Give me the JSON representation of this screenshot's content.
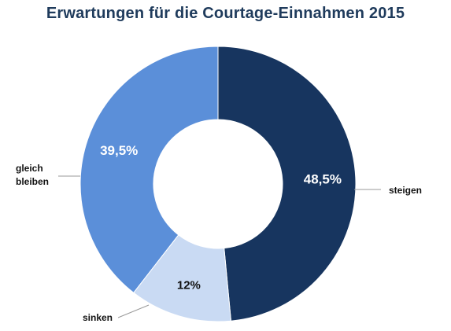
{
  "chart_data": {
    "type": "pie",
    "title": "Erwartungen für die Courtage-Einnahmen 2015",
    "categories": [
      "steigen",
      "sinken",
      "gleich bleiben"
    ],
    "values": [
      48.5,
      12,
      39.5
    ],
    "value_labels": [
      "48,5%",
      "12%",
      "39,5%"
    ],
    "category_label_lines": [
      [
        "steigen"
      ],
      [
        "sinken"
      ],
      [
        "gleich",
        "bleiben"
      ]
    ],
    "colors": [
      "#17355f",
      "#c9daf3",
      "#5b8fd9"
    ],
    "label_colors": [
      "#ffffff",
      "#111111",
      "#ffffff"
    ],
    "donut": true,
    "start_angle_deg": 0,
    "direction": "clockwise"
  }
}
